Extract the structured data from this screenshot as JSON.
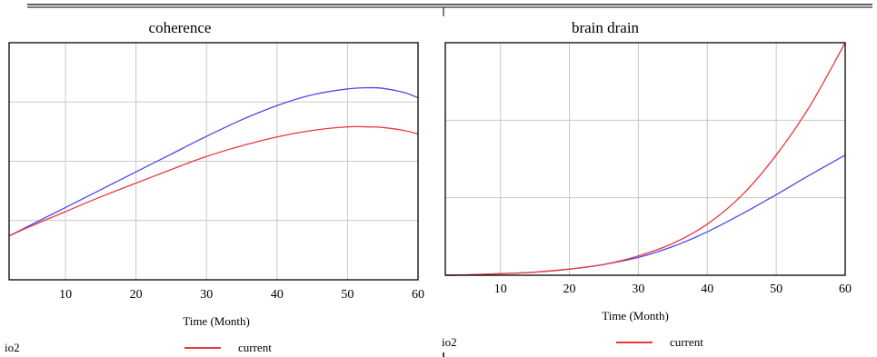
{
  "chart_data": [
    {
      "type": "line",
      "title": "coherence",
      "xlabel": "Time (Month)",
      "ylabel": "",
      "xlim": [
        2,
        60
      ],
      "ylim": [
        0,
        4
      ],
      "xticks": [
        10,
        20,
        30,
        40,
        50,
        60
      ],
      "grid": true,
      "legend_left_text": "io2",
      "legend": [
        {
          "label": "current",
          "color": "#e8383d"
        }
      ],
      "series": [
        {
          "name": "",
          "color": "#4a4ae8",
          "x": [
            2,
            5,
            10,
            15,
            20,
            25,
            30,
            35,
            40,
            45,
            50,
            53,
            55,
            58,
            60
          ],
          "y": [
            0.74,
            0.92,
            1.22,
            1.52,
            1.82,
            2.12,
            2.42,
            2.7,
            2.94,
            3.12,
            3.22,
            3.24,
            3.23,
            3.16,
            3.07
          ]
        },
        {
          "name": "current",
          "color": "#e8383d",
          "x": [
            2,
            5,
            10,
            15,
            20,
            25,
            30,
            35,
            40,
            45,
            50,
            53,
            55,
            58,
            60
          ],
          "y": [
            0.74,
            0.9,
            1.15,
            1.4,
            1.63,
            1.86,
            2.08,
            2.26,
            2.41,
            2.52,
            2.58,
            2.58,
            2.57,
            2.52,
            2.46
          ]
        }
      ]
    },
    {
      "type": "line",
      "title": "brain drain",
      "xlabel": "Time (Month)",
      "ylabel": "",
      "xlim": [
        2,
        60
      ],
      "ylim": [
        0,
        3
      ],
      "xticks": [
        10,
        20,
        30,
        40,
        50,
        60
      ],
      "grid": true,
      "legend_left_text": "io2",
      "legend": [
        {
          "label": "current",
          "color": "#e8383d"
        }
      ],
      "series": [
        {
          "name": "",
          "color": "#4a4ae8",
          "x": [
            2,
            5,
            10,
            15,
            20,
            25,
            30,
            35,
            40,
            45,
            50,
            55,
            60
          ],
          "y": [
            0,
            0.005,
            0.02,
            0.04,
            0.08,
            0.14,
            0.23,
            0.37,
            0.56,
            0.79,
            1.04,
            1.3,
            1.55
          ]
        },
        {
          "name": "current",
          "color": "#e8383d",
          "x": [
            2,
            5,
            10,
            15,
            20,
            25,
            30,
            35,
            40,
            45,
            50,
            55,
            60
          ],
          "y": [
            0,
            0.005,
            0.02,
            0.04,
            0.08,
            0.14,
            0.25,
            0.41,
            0.66,
            1.03,
            1.55,
            2.2,
            3.0
          ]
        }
      ]
    }
  ]
}
